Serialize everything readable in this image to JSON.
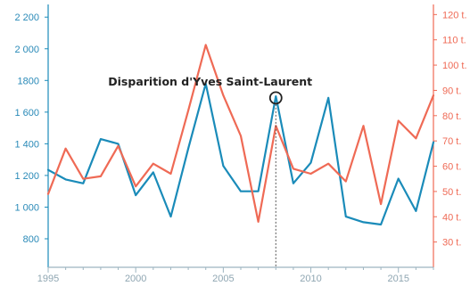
{
  "chart_data": {
    "type": "line",
    "title": "",
    "xlabel": "",
    "ylabel": "",
    "x": [
      1995,
      1996,
      1997,
      1998,
      1999,
      2000,
      2001,
      2002,
      2003,
      2004,
      2005,
      2006,
      2007,
      2008,
      2009,
      2010,
      2011,
      2012,
      2013,
      2014,
      2015,
      2016,
      2017
    ],
    "xlim": [
      1995,
      2017
    ],
    "x_ticks": [
      "1995",
      "2000",
      "2005",
      "2010",
      "2015"
    ],
    "y_left": {
      "lim": [
        620,
        2280
      ],
      "ticks": [
        800,
        1000,
        1200,
        1400,
        1600,
        1800,
        2000,
        2200
      ],
      "tick_labels": [
        "800",
        "1 000",
        "1 200",
        "1 400",
        "1 600",
        "1800",
        "2 000",
        "2 200"
      ],
      "color": "#1a8bb9"
    },
    "y_right": {
      "lim": [
        20,
        124
      ],
      "ticks": [
        30,
        40,
        50,
        60,
        70,
        80,
        90,
        100,
        110,
        120
      ],
      "tick_labels": [
        "30 t.",
        "40 t.",
        "50 t.",
        "60 t.",
        "70 t.",
        "80 t.",
        "90 t.",
        "100 t.",
        "110 t.",
        "120 t."
      ],
      "color": "#ef6a55"
    },
    "series": [
      {
        "axis": "left",
        "color": "#1a8bb9",
        "values": [
          1235,
          1175,
          1150,
          1430,
          1400,
          1075,
          1220,
          940,
          1370,
          1780,
          1260,
          1100,
          1100,
          1700,
          1150,
          1280,
          1690,
          940,
          905,
          890,
          1180,
          975,
          1410
        ]
      },
      {
        "axis": "right",
        "color": "#ef6a55",
        "values": [
          49,
          67,
          55,
          56,
          68,
          52,
          61,
          57,
          82,
          108,
          88,
          72,
          38,
          76,
          59,
          57,
          61,
          54,
          76,
          45,
          78,
          71,
          88
        ]
      }
    ],
    "annotation": {
      "text": "Disparition d'Yves Saint-Laurent",
      "x": 2008,
      "y": 1690
    },
    "grid": false,
    "legend": "none"
  }
}
